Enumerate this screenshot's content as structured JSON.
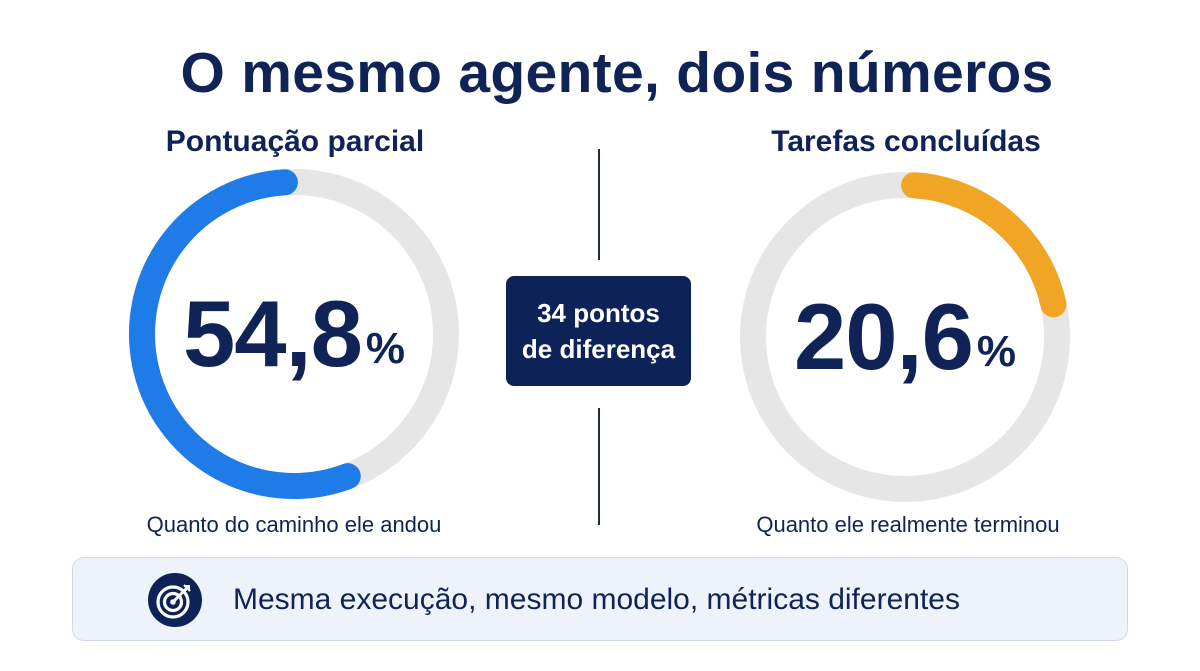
{
  "title": "O mesmo agente, dois números",
  "chart_data": [
    {
      "type": "pie",
      "style": "gauge",
      "title": "Pontuação parcial",
      "value": 54.8,
      "value_label": "54,8",
      "unit": "%",
      "caption": "Quanto do caminho ele andou",
      "color": "#1f7be8",
      "track_color": "#e6e6e6"
    },
    {
      "type": "pie",
      "style": "gauge",
      "title": "Tarefas concluídas",
      "value": 20.6,
      "value_label": "20,6",
      "unit": "%",
      "caption": "Quanto ele realmente terminou",
      "color": "#f0a524",
      "track_color": "#e6e6e6"
    }
  ],
  "difference": {
    "line1": "34 pontos",
    "line2": "de diferença"
  },
  "footer": {
    "icon": "target-icon",
    "text": "Mesma execução, mesmo modelo, métricas diferentes"
  },
  "colors": {
    "navy": "#0f2357",
    "badge": "#0d2358",
    "banner": "#eef3fb"
  }
}
